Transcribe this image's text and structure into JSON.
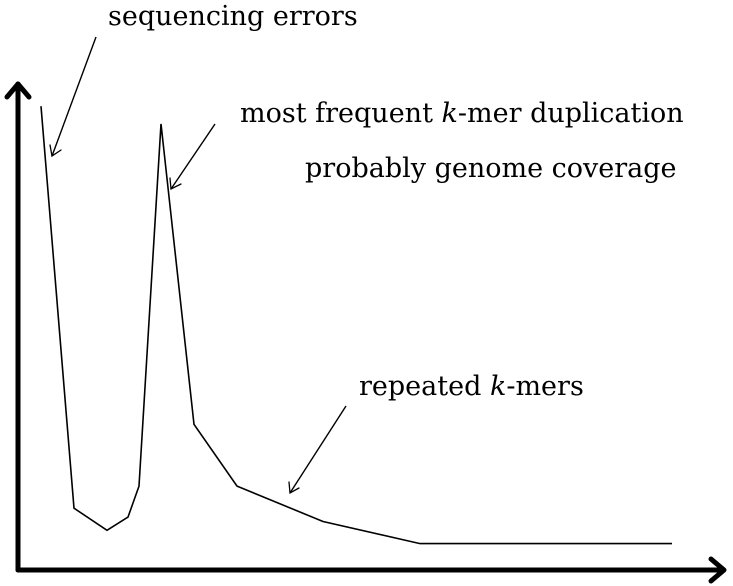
{
  "chart_data": {
    "type": "line",
    "title": "",
    "xlabel": "",
    "ylabel": "",
    "x": [
      1,
      2,
      3,
      4,
      5,
      6,
      7,
      8,
      9,
      10,
      11,
      12
    ],
    "series": [
      {
        "values": [
          100,
          9,
          4,
          7,
          14,
          96,
          28,
          14,
          6,
          1,
          1,
          1
        ]
      }
    ],
    "xlim": [
      0.5,
      12.5
    ],
    "ylim": [
      0,
      110
    ],
    "grid": false,
    "legend": "none",
    "annotations": [
      {
        "name": "sequencing-errors",
        "parts": [
          {
            "text": "sequencing errors",
            "italic": false
          }
        ],
        "target_point": 0
      },
      {
        "name": "most-frequent",
        "parts": [
          {
            "text": "most frequent ",
            "italic": false
          },
          {
            "text": "k",
            "italic": true
          },
          {
            "text": "-mer duplication",
            "italic": false
          }
        ],
        "target_point": 5
      },
      {
        "name": "genome-coverage",
        "parts": [
          {
            "text": "probably genome coverage",
            "italic": false
          }
        ]
      },
      {
        "name": "repeated-kmers",
        "parts": [
          {
            "text": "repeated ",
            "italic": false
          },
          {
            "text": "k",
            "italic": true
          },
          {
            "text": "-mers",
            "italic": false
          }
        ],
        "target_point": 7
      }
    ],
    "colors": {
      "line": "#000000",
      "axis": "#000000",
      "background": "#ffffff"
    }
  }
}
